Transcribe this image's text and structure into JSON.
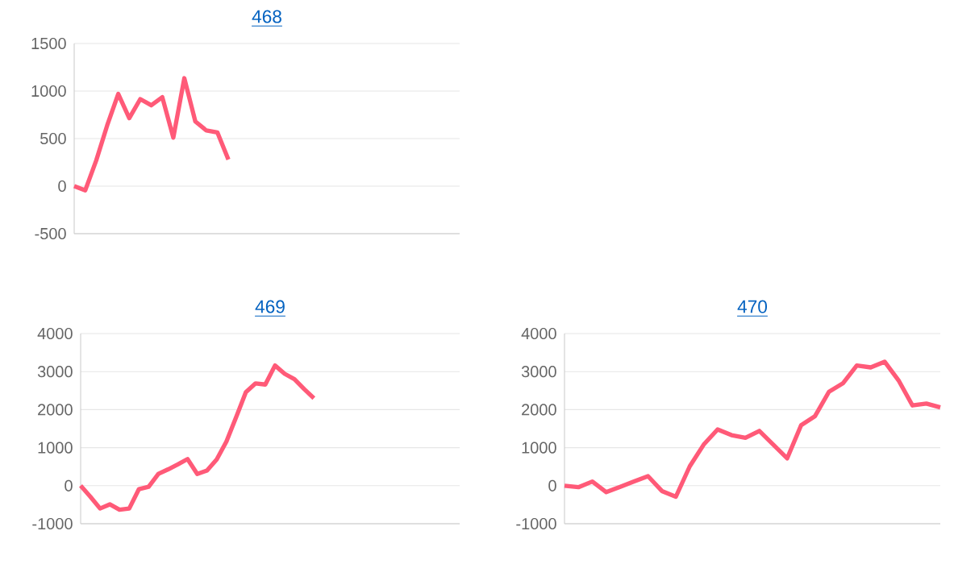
{
  "chart_data": [
    {
      "type": "line",
      "title": "468",
      "categories": [
        null,
        null,
        null,
        null,
        null,
        null,
        null,
        null,
        null,
        null,
        null,
        null,
        null,
        null,
        null,
        null,
        null,
        null,
        null,
        null,
        null,
        null,
        null,
        null,
        null,
        null,
        null,
        null,
        null,
        null,
        null,
        null,
        null,
        null,
        null,
        null
      ],
      "series": [
        {
          "color": "#ff5a78",
          "values": [
            0,
            -45,
            270,
            640,
            970,
            715,
            915,
            850,
            935,
            510,
            1135,
            680,
            585,
            565,
            280,
            null,
            null,
            null,
            null,
            null,
            null,
            null,
            null,
            null,
            null,
            null,
            null,
            null,
            null,
            null,
            null,
            null,
            null,
            null,
            null,
            null
          ]
        }
      ],
      "ylim": [
        -500,
        1500
      ],
      "yticks": [
        -500,
        0,
        500,
        1000,
        1500
      ],
      "grid": "y",
      "tick_labels": "y"
    },
    {
      "type": "line",
      "title": "469",
      "categories": [
        null,
        null,
        null,
        null,
        null,
        null,
        null,
        null,
        null,
        null,
        null,
        null,
        null,
        null,
        null,
        null,
        null,
        null,
        null,
        null,
        null,
        null,
        null,
        null,
        null,
        null,
        null,
        null,
        null,
        null,
        null,
        null,
        null,
        null,
        null,
        null,
        null,
        null,
        null,
        null
      ],
      "series": [
        {
          "color": "#ff5a78",
          "values": [
            0,
            -290,
            -600,
            -490,
            -630,
            -600,
            -90,
            -30,
            310,
            430,
            560,
            700,
            310,
            400,
            690,
            1160,
            1800,
            2460,
            2690,
            2660,
            3160,
            2940,
            2800,
            2540,
            2300,
            null,
            null,
            null,
            null,
            null,
            null,
            null,
            null,
            null,
            null,
            null,
            null,
            null,
            null,
            null
          ]
        }
      ],
      "ylim": [
        -1000,
        4000
      ],
      "yticks": [
        -1000,
        0,
        1000,
        2000,
        3000,
        4000
      ],
      "grid": "y",
      "tick_labels": "y"
    },
    {
      "type": "line",
      "title": "470",
      "categories": [
        null,
        null,
        null,
        null,
        null,
        null,
        null,
        null,
        null,
        null,
        null,
        null,
        null,
        null,
        null,
        null,
        null,
        null,
        null,
        null,
        null,
        null,
        null,
        null,
        null,
        null,
        null,
        null
      ],
      "series": [
        {
          "color": "#ff5a78",
          "values": [
            0,
            -40,
            110,
            -170,
            -30,
            110,
            250,
            -140,
            -290,
            510,
            1080,
            1480,
            1330,
            1260,
            1440,
            1080,
            720,
            1590,
            1830,
            2470,
            2690,
            3160,
            3110,
            3260,
            2770,
            2110,
            2160,
            2060
          ]
        }
      ],
      "ylim": [
        -1000,
        4000
      ],
      "yticks": [
        -1000,
        0,
        1000,
        2000,
        3000,
        4000
      ],
      "grid": "y",
      "tick_labels": "y"
    }
  ]
}
